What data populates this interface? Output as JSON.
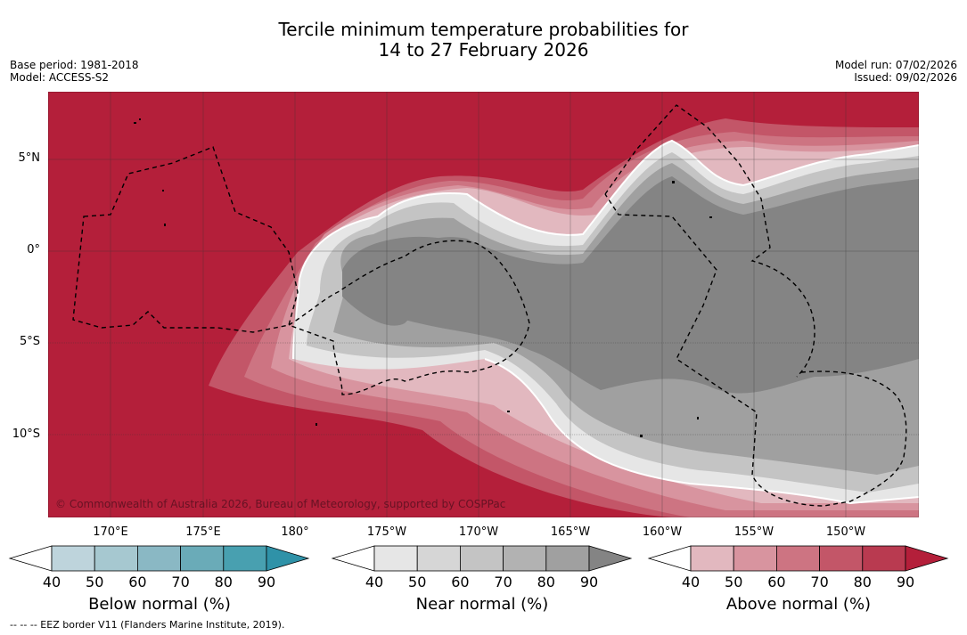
{
  "title": {
    "line1": "Tercile minimum temperature probabilities for",
    "line2": "14 to 27 February 2026"
  },
  "meta_left": {
    "base_period": "Base period: 1981-2018",
    "model": "Model: ACCESS-S2"
  },
  "meta_right": {
    "model_run": "Model run: 07/02/2026",
    "issued": "Issued: 09/02/2026"
  },
  "map": {
    "lat_labels": [
      "5°N",
      "0°",
      "5°S",
      "10°S"
    ],
    "lon_labels": [
      "170°E",
      "175°E",
      "180°",
      "175°W",
      "170°W",
      "165°W",
      "160°W",
      "155°W",
      "150°W"
    ],
    "copyright": "© Commonwealth of Australia 2026, Bureau of Meteorology, supported by COSPPac",
    "colors": {
      "above_dominant": "#b41f3a",
      "near_dominant": "#848484",
      "border_line": "#000000"
    }
  },
  "colorbars": [
    {
      "name": "below",
      "label": "Below normal (%)",
      "ticks": [
        "40",
        "50",
        "60",
        "70",
        "80",
        "90"
      ],
      "colors": [
        "#bed4dc",
        "#a6c8d0",
        "#8ab8c4",
        "#6aabb8",
        "#48a0b0",
        "#2f92a8"
      ]
    },
    {
      "name": "near",
      "label": "Near normal (%)",
      "ticks": [
        "40",
        "50",
        "60",
        "70",
        "80",
        "90"
      ],
      "colors": [
        "#e6e6e6",
        "#d6d6d6",
        "#c4c4c4",
        "#b2b2b2",
        "#a0a0a0",
        "#848484"
      ]
    },
    {
      "name": "above",
      "label": "Above normal (%)",
      "ticks": [
        "40",
        "50",
        "60",
        "70",
        "80",
        "90"
      ],
      "colors": [
        "#e2b8bf",
        "#d8949f",
        "#cd7482",
        "#c35668",
        "#b93a50",
        "#b41f3a"
      ]
    }
  ],
  "footnote": "--  --  -- EEZ border V11 (Flanders Marine Institute, 2019)."
}
